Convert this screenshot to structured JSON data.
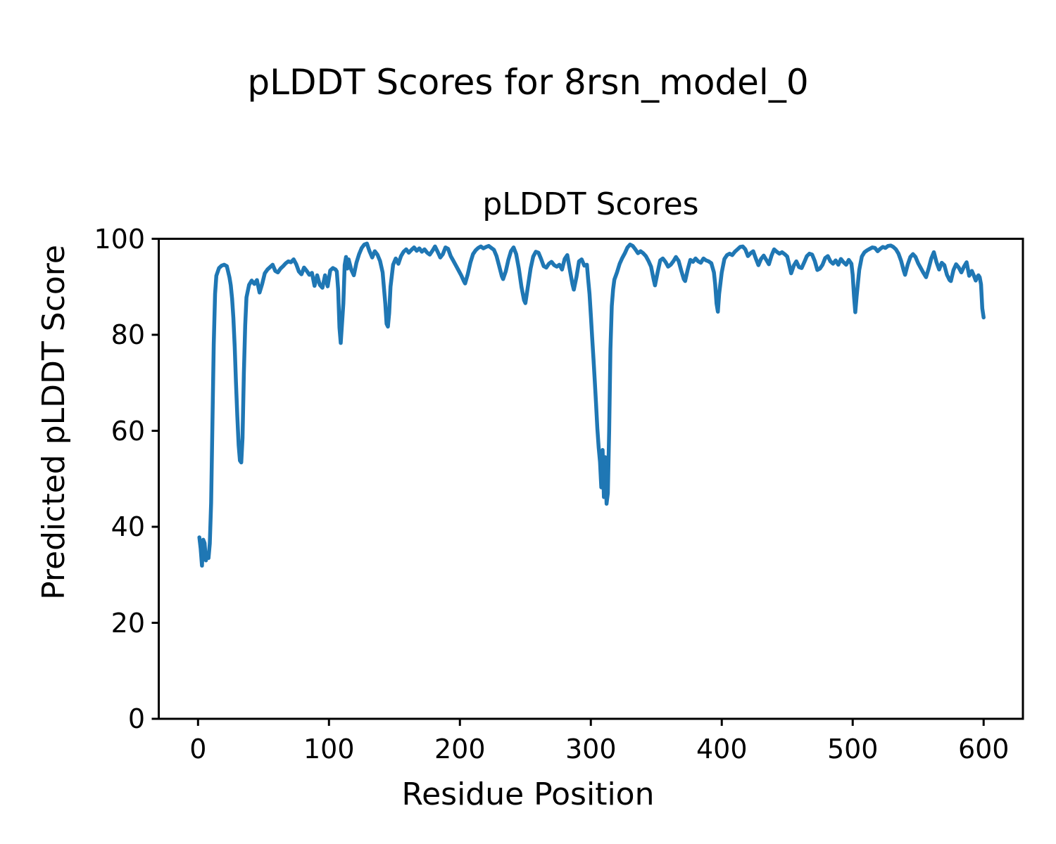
{
  "figure": {
    "suptitle": "pLDDT Scores for 8rsn_model_0",
    "background": "#ffffff",
    "text_color": "#000000"
  },
  "chart_data": {
    "type": "line",
    "title": "pLDDT Scores",
    "xlabel": "Residue Position",
    "ylabel": "Predicted pLDDT Score",
    "xlim": [
      -30,
      630
    ],
    "ylim": [
      0,
      100
    ],
    "xticks": [
      0,
      100,
      200,
      300,
      400,
      500,
      600
    ],
    "yticks": [
      0,
      20,
      40,
      60,
      80,
      100
    ],
    "grid": false,
    "legend": "none",
    "line_color": "#1f77b4",
    "line_width": 5.5,
    "series": [
      {
        "name": "pLDDT",
        "x": [
          1,
          2,
          3,
          4,
          5,
          6,
          7,
          8,
          9,
          10,
          11,
          12,
          13,
          14,
          16,
          18,
          20,
          22,
          24,
          25,
          26,
          27,
          28,
          29,
          30,
          31,
          32,
          33,
          34,
          35,
          36,
          37,
          39,
          41,
          43,
          45,
          47,
          49,
          51,
          53,
          55,
          57,
          59,
          61,
          63,
          65,
          67,
          69,
          71,
          73,
          75,
          77,
          79,
          81,
          83,
          85,
          87,
          89,
          91,
          93,
          95,
          97,
          99,
          101,
          103,
          105,
          106,
          107,
          108,
          109,
          110,
          111,
          112,
          113,
          114,
          115,
          117,
          119,
          121,
          123,
          125,
          127,
          129,
          131,
          133,
          135,
          137,
          139,
          141,
          143,
          144,
          145,
          146,
          147,
          149,
          151,
          153,
          155,
          157,
          159,
          161,
          163,
          165,
          167,
          169,
          171,
          173,
          175,
          177,
          179,
          181,
          183,
          185,
          187,
          189,
          191,
          193,
          195,
          197,
          199,
          201,
          203,
          204,
          206,
          208,
          210,
          212,
          214,
          216,
          218,
          220,
          222,
          224,
          226,
          228,
          230,
          232,
          233,
          235,
          237,
          239,
          241,
          243,
          245,
          247,
          249,
          250,
          252,
          254,
          256,
          258,
          260,
          262,
          264,
          266,
          268,
          270,
          272,
          274,
          276,
          278,
          280,
          282,
          284,
          286,
          287,
          289,
          291,
          293,
          295,
          297,
          298,
          299,
          300,
          301,
          302,
          303,
          304,
          305,
          306,
          307,
          308,
          309,
          310,
          311,
          312,
          313,
          314,
          315,
          316,
          317,
          318,
          320,
          322,
          324,
          326,
          328,
          330,
          332,
          334,
          336,
          338,
          340,
          342,
          344,
          346,
          348,
          349,
          351,
          353,
          355,
          357,
          359,
          361,
          363,
          365,
          367,
          369,
          371,
          372,
          374,
          376,
          378,
          380,
          382,
          384,
          386,
          388,
          390,
          392,
          394,
          395,
          396,
          397,
          398,
          400,
          402,
          404,
          406,
          408,
          410,
          412,
          414,
          416,
          418,
          420,
          422,
          424,
          426,
          428,
          430,
          432,
          434,
          436,
          438,
          440,
          442,
          444,
          446,
          448,
          450,
          452,
          453,
          455,
          457,
          459,
          461,
          463,
          465,
          467,
          469,
          471,
          473,
          475,
          477,
          479,
          481,
          483,
          485,
          487,
          489,
          491,
          493,
          495,
          497,
          499,
          500,
          501,
          502,
          503,
          505,
          507,
          509,
          511,
          513,
          515,
          517,
          519,
          521,
          523,
          525,
          527,
          529,
          531,
          533,
          535,
          537,
          539,
          540,
          542,
          544,
          546,
          548,
          550,
          552,
          554,
          556,
          558,
          560,
          562,
          564,
          566,
          568,
          570,
          572,
          574,
          575,
          577,
          579,
          581,
          583,
          585,
          587,
          589,
          591,
          593,
          594,
          595,
          596,
          597,
          598,
          599,
          600
        ],
        "y": [
          37.8,
          35.5,
          31.9,
          37.3,
          36.6,
          33.0,
          34.2,
          33.5,
          36.5,
          45.0,
          62.0,
          78.0,
          88.5,
          92.3,
          93.9,
          94.4,
          94.6,
          94.3,
          92.0,
          90.3,
          87.5,
          83.5,
          77.5,
          70.0,
          63.0,
          57.0,
          53.8,
          53.4,
          58.5,
          72.0,
          82.0,
          87.8,
          90.4,
          91.3,
          90.6,
          91.4,
          88.8,
          90.6,
          92.8,
          93.6,
          94.1,
          94.6,
          93.3,
          93.0,
          93.8,
          94.3,
          94.9,
          95.3,
          95.1,
          95.7,
          94.7,
          93.2,
          92.6,
          94.0,
          93.3,
          92.5,
          92.9,
          90.2,
          92.4,
          90.4,
          89.8,
          92.4,
          90.1,
          93.4,
          93.9,
          93.6,
          93.2,
          89.5,
          81.5,
          78.3,
          82.5,
          86.5,
          94.5,
          96.2,
          93.8,
          95.7,
          93.6,
          92.4,
          95.0,
          96.8,
          98.1,
          98.8,
          99.0,
          97.4,
          96.1,
          97.4,
          96.7,
          95.4,
          93.0,
          86.5,
          82.3,
          81.7,
          84.5,
          90.0,
          94.6,
          95.9,
          94.8,
          96.4,
          97.3,
          97.8,
          97.1,
          97.7,
          98.2,
          97.5,
          98.0,
          97.3,
          97.8,
          97.1,
          96.7,
          97.5,
          98.4,
          97.3,
          96.1,
          96.8,
          98.2,
          97.9,
          96.4,
          95.4,
          94.4,
          93.4,
          92.4,
          91.2,
          90.7,
          92.6,
          95.0,
          96.8,
          97.6,
          98.1,
          98.4,
          98.0,
          98.3,
          98.5,
          98.1,
          97.7,
          96.4,
          94.3,
          92.2,
          91.6,
          93.2,
          95.6,
          97.4,
          98.2,
          96.8,
          93.8,
          90.0,
          87.2,
          86.6,
          90.2,
          93.8,
          96.3,
          97.3,
          97.1,
          95.8,
          94.3,
          94.0,
          94.8,
          95.2,
          94.5,
          94.2,
          94.6,
          93.6,
          95.8,
          96.6,
          93.5,
          90.5,
          89.4,
          92.0,
          95.3,
          95.7,
          94.4,
          94.6,
          91.5,
          88.5,
          84.0,
          79.5,
          75.0,
          70.5,
          65.5,
          60.5,
          56.5,
          53.5,
          48.2,
          56.0,
          46.2,
          54.5,
          44.8,
          47.0,
          60.0,
          77.0,
          86.0,
          89.5,
          91.5,
          93.0,
          94.8,
          96.0,
          97.0,
          98.2,
          98.8,
          98.5,
          97.8,
          97.0,
          97.4,
          97.0,
          96.4,
          95.4,
          94.2,
          91.5,
          90.3,
          93.0,
          95.5,
          95.9,
          95.2,
          94.2,
          94.6,
          95.3,
          96.2,
          95.4,
          93.4,
          91.6,
          91.2,
          93.6,
          95.6,
          95.2,
          95.9,
          95.3,
          95.0,
          95.9,
          95.5,
          95.3,
          94.9,
          93.0,
          90.5,
          86.5,
          84.8,
          88.5,
          93.0,
          95.8,
          96.6,
          96.9,
          96.6,
          97.3,
          97.8,
          98.3,
          98.4,
          97.8,
          96.4,
          97.0,
          97.4,
          95.9,
          94.5,
          95.8,
          96.5,
          95.6,
          94.7,
          96.5,
          97.8,
          97.3,
          96.9,
          97.2,
          96.8,
          96.3,
          94.0,
          92.8,
          94.4,
          95.3,
          94.1,
          93.9,
          95.1,
          96.4,
          96.9,
          96.7,
          95.4,
          93.5,
          93.8,
          94.6,
          96.0,
          96.4,
          95.3,
          94.8,
          95.5,
          94.6,
          95.8,
          95.1,
          94.6,
          95.6,
          94.8,
          92.5,
          88.0,
          84.7,
          88.0,
          93.5,
          96.3,
          97.2,
          97.6,
          97.9,
          98.2,
          98.1,
          97.4,
          97.9,
          98.3,
          98.1,
          98.5,
          98.6,
          98.3,
          97.8,
          96.9,
          95.4,
          93.3,
          92.5,
          94.6,
          96.2,
          96.8,
          96.2,
          94.9,
          93.9,
          92.9,
          92.0,
          93.8,
          95.9,
          97.2,
          95.1,
          93.6,
          95.0,
          94.5,
          92.5,
          91.4,
          91.2,
          93.5,
          94.7,
          94.0,
          93.0,
          94.2,
          95.1,
          92.3,
          93.3,
          92.0,
          91.3,
          92.0,
          92.4,
          92.0,
          90.5,
          85.5,
          83.6
        ]
      }
    ]
  }
}
